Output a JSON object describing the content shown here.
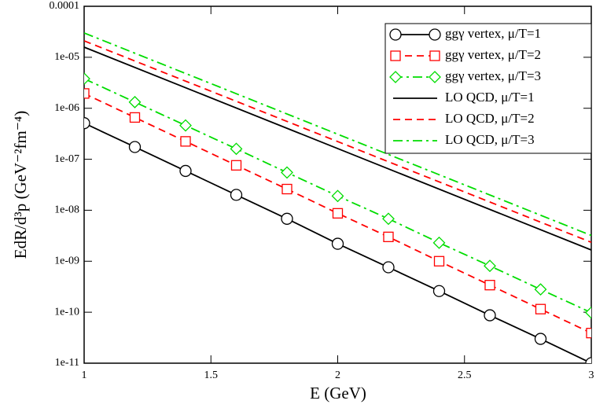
{
  "chart_data": {
    "type": "line",
    "xlabel": "E (GeV)",
    "ylabel": "EdR/d³p (GeV⁻²fm⁻⁴)",
    "xlim": [
      1,
      3
    ],
    "xticks": [
      1,
      1.5,
      2,
      2.5,
      3
    ],
    "ylim": [
      1e-11,
      0.0001
    ],
    "log_y": true,
    "yticks": [
      {
        "value": 1e-11,
        "label": "1e-11"
      },
      {
        "value": 1e-10,
        "label": "1e-10"
      },
      {
        "value": 1e-09,
        "label": "1e-09"
      },
      {
        "value": 1e-08,
        "label": "1e-08"
      },
      {
        "value": 1e-07,
        "label": "1e-07"
      },
      {
        "value": 1e-06,
        "label": "1e-06"
      },
      {
        "value": 1e-05,
        "label": "1e-05"
      },
      {
        "value": 0.0001,
        "label": "0.0001"
      }
    ],
    "legend": "upper right",
    "series": [
      {
        "name": "ggγ vertex, μ/T=1",
        "color": "#000000",
        "line_style": "solid",
        "marker": "circle",
        "x": [
          1,
          1.2,
          1.4,
          1.6,
          1.8,
          2,
          2.2,
          2.4,
          2.6,
          2.8,
          3
        ],
        "values": [
          5.1e-07,
          1.74e-07,
          5.9e-08,
          2e-08,
          6.8e-09,
          2.2e-09,
          7.6e-10,
          2.6e-10,
          8.7e-11,
          3e-11,
          1e-11
        ]
      },
      {
        "name": "ggγ vertex, μ/T=2",
        "color": "#ff0000",
        "line_style": "dashed",
        "marker": "square",
        "x": [
          1,
          1.2,
          1.4,
          1.6,
          1.8,
          2,
          2.2,
          2.4,
          2.6,
          2.8,
          3
        ],
        "values": [
          1.95e-06,
          6.6e-07,
          2.24e-07,
          7.6e-08,
          2.6e-08,
          8.7e-09,
          3e-09,
          1e-09,
          3.4e-10,
          1.15e-10,
          3.9e-11
        ]
      },
      {
        "name": "ggγ vertex, μ/T=3",
        "color": "#00dd00",
        "line_style": "dashdot",
        "marker": "diamond",
        "x": [
          1,
          1.2,
          1.4,
          1.6,
          1.8,
          2,
          2.2,
          2.4,
          2.6,
          2.8,
          3
        ],
        "values": [
          3.8e-06,
          1.32e-06,
          4.6e-07,
          1.6e-07,
          5.5e-08,
          1.9e-08,
          6.8e-09,
          2.3e-09,
          8.1e-10,
          2.8e-10,
          9.8e-11
        ]
      },
      {
        "name": "LO QCD, μ/T=1",
        "color": "#000000",
        "line_style": "solid",
        "x": [
          1,
          3
        ],
        "values": [
          1.58e-05,
          1.66e-09
        ]
      },
      {
        "name": "LO QCD, μ/T=2",
        "color": "#ff0000",
        "line_style": "dashed",
        "x": [
          1,
          3
        ],
        "values": [
          2.1e-05,
          2.35e-09
        ]
      },
      {
        "name": "LO QCD, μ/T=3",
        "color": "#00dd00",
        "line_style": "dashdot",
        "x": [
          1,
          3
        ],
        "values": [
          3e-05,
          3.2e-09
        ]
      }
    ]
  }
}
